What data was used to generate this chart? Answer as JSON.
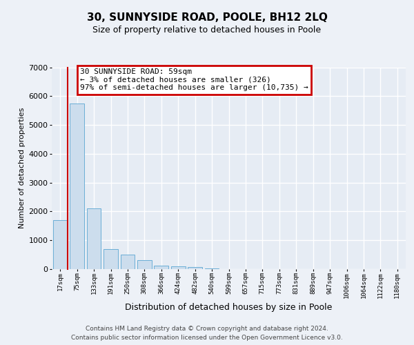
{
  "title": "30, SUNNYSIDE ROAD, POOLE, BH12 2LQ",
  "subtitle": "Size of property relative to detached houses in Poole",
  "xlabel": "Distribution of detached houses by size in Poole",
  "ylabel": "Number of detached properties",
  "footer_line1": "Contains HM Land Registry data © Crown copyright and database right 2024.",
  "footer_line2": "Contains public sector information licensed under the Open Government Licence v3.0.",
  "bar_color": "#ccdded",
  "bar_edge_color": "#6aaed6",
  "annotation_text": "30 SUNNYSIDE ROAD: 59sqm\n← 3% of detached houses are smaller (326)\n97% of semi-detached houses are larger (10,735) →",
  "annotation_box_facecolor": "#ffffff",
  "annotation_box_edgecolor": "#cc0000",
  "property_line_color": "#cc0000",
  "categories": [
    "17sqm",
    "75sqm",
    "133sqm",
    "191sqm",
    "250sqm",
    "308sqm",
    "366sqm",
    "424sqm",
    "482sqm",
    "540sqm",
    "599sqm",
    "657sqm",
    "715sqm",
    "773sqm",
    "831sqm",
    "889sqm",
    "947sqm",
    "1006sqm",
    "1064sqm",
    "1122sqm",
    "1180sqm"
  ],
  "values": [
    1700,
    5750,
    2100,
    700,
    500,
    300,
    130,
    100,
    60,
    30,
    5,
    2,
    1,
    0,
    0,
    0,
    0,
    0,
    0,
    0,
    0
  ],
  "ylim_max": 7000,
  "ytick_step": 1000,
  "background_color": "#edf1f7",
  "plot_background": "#e6ecf4",
  "grid_color": "#ffffff",
  "title_fontsize": 11,
  "subtitle_fontsize": 9,
  "ylabel_fontsize": 8,
  "xlabel_fontsize": 9,
  "ytick_fontsize": 8,
  "xtick_fontsize": 6.5,
  "footer_fontsize": 6.5,
  "ann_fontsize": 8
}
